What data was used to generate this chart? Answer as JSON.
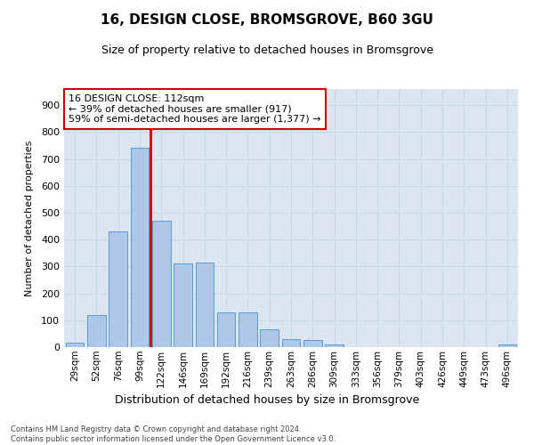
{
  "title": "16, DESIGN CLOSE, BROMSGROVE, B60 3GU",
  "subtitle": "Size of property relative to detached houses in Bromsgrove",
  "xlabel": "Distribution of detached houses by size in Bromsgrove",
  "ylabel": "Number of detached properties",
  "bar_labels": [
    "29sqm",
    "52sqm",
    "76sqm",
    "99sqm",
    "122sqm",
    "146sqm",
    "169sqm",
    "192sqm",
    "216sqm",
    "239sqm",
    "263sqm",
    "286sqm",
    "309sqm",
    "333sqm",
    "356sqm",
    "379sqm",
    "403sqm",
    "426sqm",
    "449sqm",
    "473sqm",
    "496sqm"
  ],
  "bar_values": [
    15,
    120,
    430,
    740,
    470,
    310,
    315,
    130,
    130,
    65,
    30,
    25,
    10,
    0,
    0,
    0,
    0,
    0,
    0,
    0,
    10
  ],
  "bar_color": "#aec6e8",
  "bar_edge_color": "#5b9bd5",
  "grid_color": "#c8d8ea",
  "background_color": "#dce6f1",
  "vline_color": "#cc0000",
  "annotation_text": "16 DESIGN CLOSE: 112sqm\n← 39% of detached houses are smaller (917)\n59% of semi-detached houses are larger (1,377) →",
  "ylim": [
    0,
    960
  ],
  "yticks": [
    0,
    100,
    200,
    300,
    400,
    500,
    600,
    700,
    800,
    900
  ],
  "footer": "Contains HM Land Registry data © Crown copyright and database right 2024.\nContains public sector information licensed under the Open Government Licence v3.0."
}
